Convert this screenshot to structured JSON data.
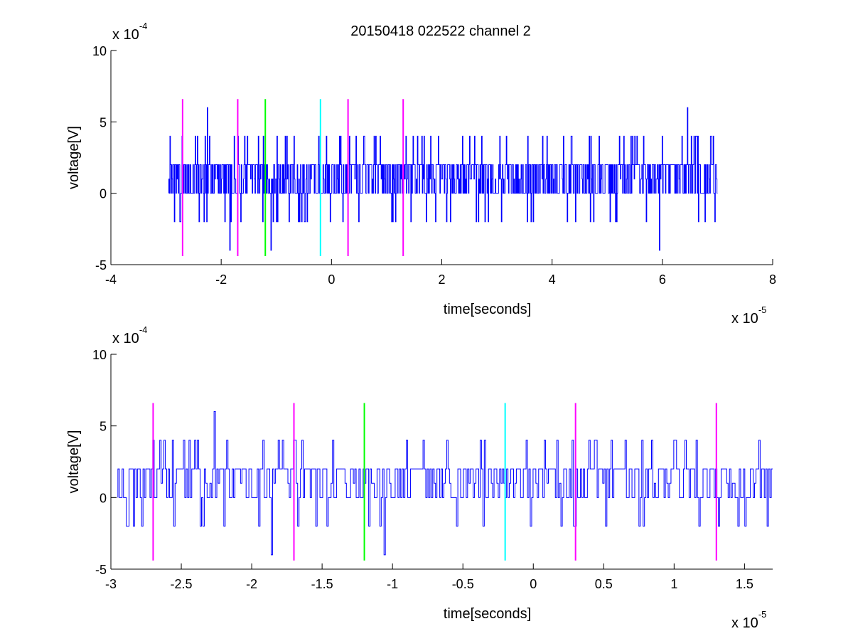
{
  "figure_title": "20150418 022522 channel 2",
  "chart_data": [
    {
      "type": "line",
      "title": "20150418 022522 channel 2",
      "xlabel": "time[seconds]",
      "ylabel": "voltage[V]",
      "xlim": [
        -4,
        8
      ],
      "ylim": [
        -5,
        10
      ],
      "xticks": [
        "-4",
        "-2",
        "0",
        "2",
        "4",
        "6",
        "8"
      ],
      "yticks": [
        "-5",
        "0",
        "5",
        "10"
      ],
      "x_multiplier": {
        "base": "x 10",
        "exp": "-5"
      },
      "y_multiplier": {
        "base": "x 10",
        "exp": "-4"
      },
      "signal": {
        "color": "#0000ff",
        "x_start": -2.95,
        "x_end": 7.0,
        "levels": [
          -4,
          -2,
          0,
          1,
          2,
          4,
          6
        ],
        "typical_range": [
          0,
          2
        ],
        "spikes": [
          {
            "x": -2.75,
            "y": -2
          },
          {
            "x": -2.25,
            "y": 6
          },
          {
            "x": -2.4,
            "y": -2
          },
          {
            "x": -1.85,
            "y": -4
          },
          {
            "x": -1.65,
            "y": -2
          },
          {
            "x": -1.1,
            "y": -4
          },
          {
            "x": -0.6,
            "y": -2
          },
          {
            "x": 0.2,
            "y": -2
          },
          {
            "x": 2.15,
            "y": -2
          },
          {
            "x": 4.75,
            "y": -2
          },
          {
            "x": 5.95,
            "y": -4
          },
          {
            "x": 6.45,
            "y": 6
          },
          {
            "x": 6.95,
            "y": -2
          }
        ]
      },
      "markers": [
        {
          "x": -2.7,
          "color": "#ff00ff"
        },
        {
          "x": -1.7,
          "color": "#ff00ff"
        },
        {
          "x": -1.2,
          "color": "#00ff00"
        },
        {
          "x": -0.2,
          "color": "#00ffff"
        },
        {
          "x": 0.3,
          "color": "#ff00ff"
        },
        {
          "x": 1.3,
          "color": "#ff00ff"
        }
      ],
      "marker_range": [
        -4.4,
        6.6
      ]
    },
    {
      "type": "line",
      "title": "",
      "xlabel": "time[seconds]",
      "ylabel": "voltage[V]",
      "xlim": [
        -3,
        1.7
      ],
      "ylim": [
        -5,
        10
      ],
      "xticks": [
        "-3",
        "-2.5",
        "-2",
        "-1.5",
        "-1",
        "-0.5",
        "0",
        "0.5",
        "1",
        "1.5"
      ],
      "yticks": [
        "-5",
        "0",
        "5",
        "10"
      ],
      "x_multiplier": {
        "base": "x 10",
        "exp": "-5"
      },
      "y_multiplier": {
        "base": "x 10",
        "exp": "-4"
      },
      "signal": {
        "color": "#0000ff",
        "x_start": -2.95,
        "x_end": 1.7,
        "levels": [
          -4,
          -2,
          0,
          1,
          2,
          4,
          6
        ],
        "typical_range": [
          0,
          2
        ],
        "spikes": [
          {
            "x": -2.88,
            "y": -2
          },
          {
            "x": -2.45,
            "y": 4
          },
          {
            "x": -2.35,
            "y": -2
          },
          {
            "x": -2.27,
            "y": 6
          },
          {
            "x": -2.2,
            "y": -2
          },
          {
            "x": -1.95,
            "y": -2
          },
          {
            "x": -1.86,
            "y": -4
          },
          {
            "x": -1.78,
            "y": 4
          },
          {
            "x": -1.55,
            "y": -2
          },
          {
            "x": -1.17,
            "y": -2
          },
          {
            "x": -1.06,
            "y": -4
          },
          {
            "x": -0.9,
            "y": 4
          },
          {
            "x": -0.55,
            "y": -2
          },
          {
            "x": -0.35,
            "y": 4
          },
          {
            "x": -0.05,
            "y": 4
          },
          {
            "x": 0.3,
            "y": -2
          },
          {
            "x": 0.75,
            "y": -2
          },
          {
            "x": 1.0,
            "y": 4
          },
          {
            "x": 1.45,
            "y": -2
          },
          {
            "x": 1.6,
            "y": 4
          }
        ]
      },
      "markers": [
        {
          "x": -2.7,
          "color": "#ff00ff"
        },
        {
          "x": -1.7,
          "color": "#ff00ff"
        },
        {
          "x": -1.2,
          "color": "#00ff00"
        },
        {
          "x": -0.2,
          "color": "#00ffff"
        },
        {
          "x": 0.3,
          "color": "#ff00ff"
        },
        {
          "x": 1.3,
          "color": "#ff00ff"
        }
      ],
      "marker_range": [
        -4.4,
        6.6
      ]
    }
  ]
}
